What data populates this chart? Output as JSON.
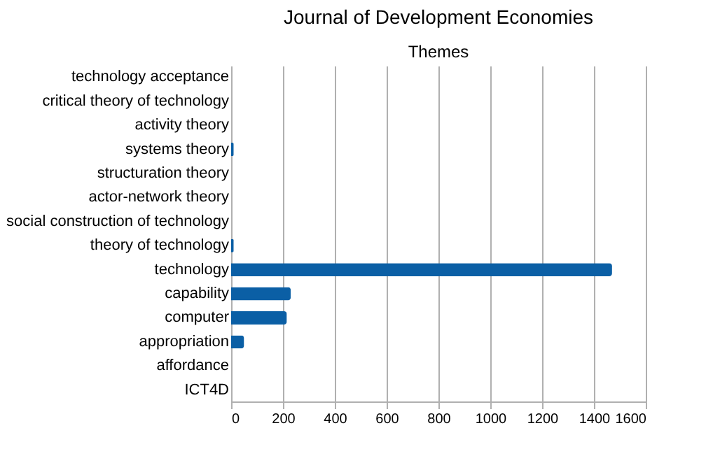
{
  "chart_data": {
    "type": "bar",
    "orientation": "horizontal",
    "title": "Journal of Development Economies",
    "subtitle": "Themes",
    "categories": [
      "technology acceptance",
      "critical theory of technology",
      "activity theory",
      "systems theory",
      "structuration theory",
      "actor-network theory",
      "social construction of technology",
      "theory of technology",
      "technology",
      "capability",
      "computer",
      "appropriation",
      "affordance",
      "ICT4D"
    ],
    "values": [
      0,
      0,
      0,
      10,
      0,
      0,
      0,
      10,
      1470,
      230,
      215,
      50,
      0,
      0
    ],
    "color": "#0b5fa5",
    "xlim": [
      0,
      1600
    ],
    "xticks": [
      0,
      200,
      400,
      600,
      800,
      1000,
      1200,
      1400,
      1600
    ],
    "grid": "x"
  }
}
